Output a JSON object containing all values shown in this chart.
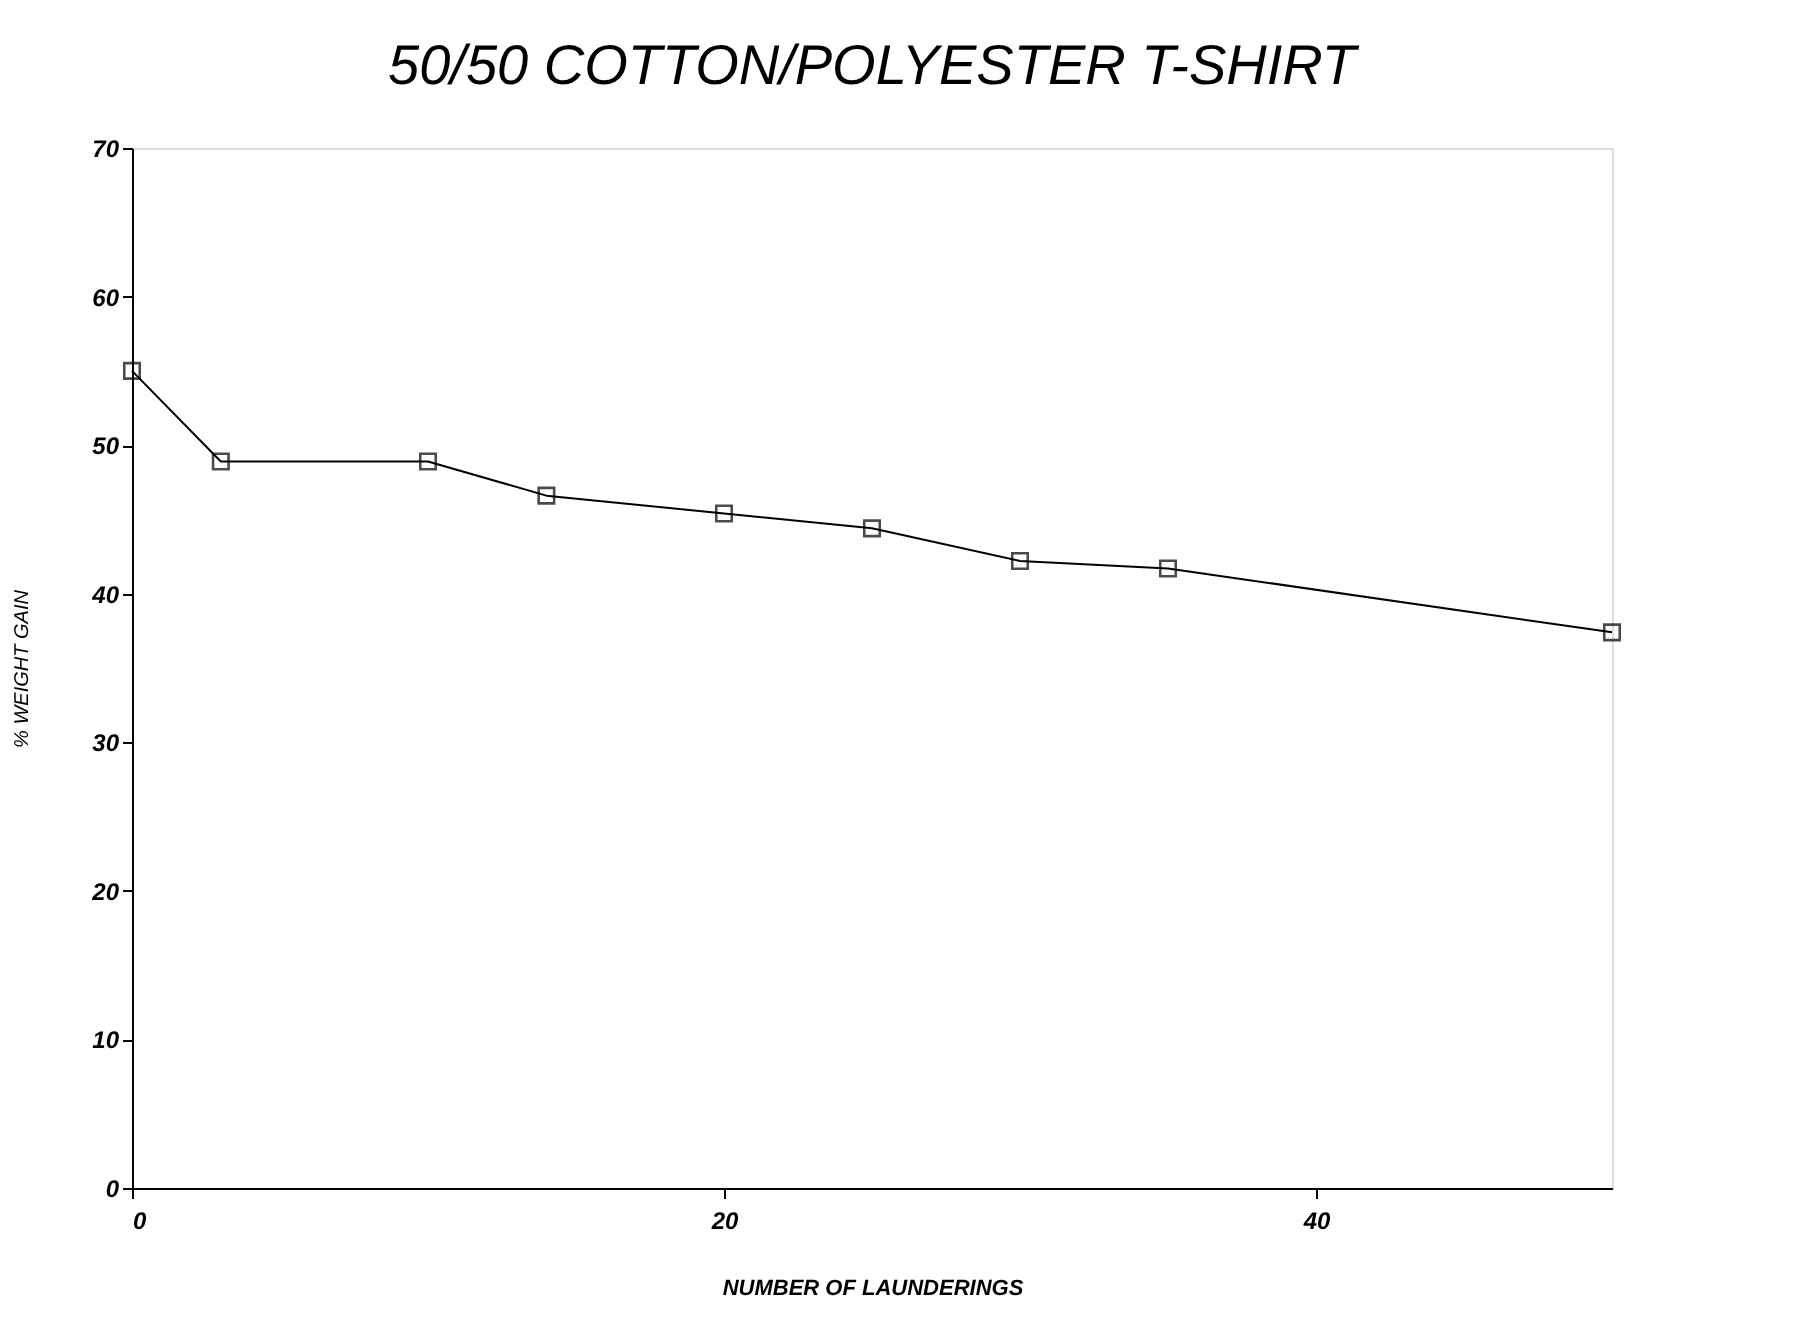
{
  "chart_data": {
    "type": "line",
    "title": "50/50 COTTON/POLYESTER T-SHIRT",
    "xlabel": "NUMBER OF LAUNDERINGS",
    "ylabel": "% WEIGHT GAIN",
    "x": [
      0,
      3,
      10,
      14,
      20,
      25,
      30,
      35,
      50
    ],
    "series": [
      {
        "color": "#000000",
        "values": [
          55,
          48.9,
          48.9,
          46.6,
          45.4,
          44.4,
          42.2,
          41.7,
          37.4
        ]
      }
    ],
    "xlim": [
      0,
      50
    ],
    "xticks": [
      0,
      20,
      40
    ],
    "ylim": [
      0,
      70
    ],
    "yticks": [
      0,
      10,
      20,
      30,
      40,
      50,
      60,
      70
    ],
    "grid": false,
    "legend": false,
    "marker": "square",
    "line_style": "solid"
  }
}
